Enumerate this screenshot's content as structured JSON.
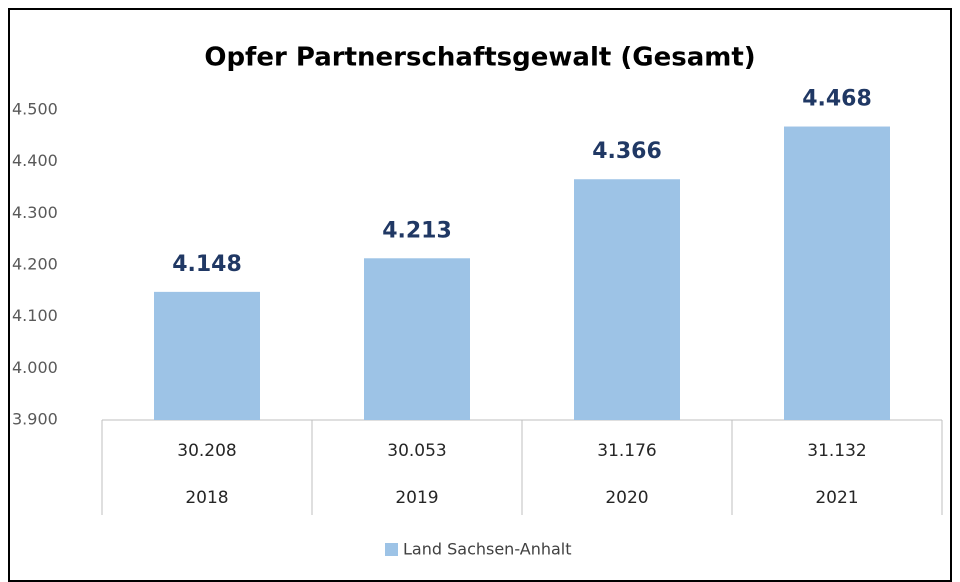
{
  "chart_data": {
    "type": "bar",
    "title": "Opfer Partnerschaftsgewalt (Gesamt)",
    "categories": [
      "2018",
      "2019",
      "2020",
      "2021"
    ],
    "table_row": [
      "30.208",
      "30.053",
      "31.176",
      "31.132"
    ],
    "series": [
      {
        "name": "Land Sachsen-Anhalt",
        "color": "#9dc3e6",
        "values": [
          4148,
          4213,
          4366,
          4468
        ],
        "value_labels": [
          "4.148",
          "4.213",
          "4.366",
          "4.468"
        ]
      }
    ],
    "ylim": [
      3900,
      4500
    ],
    "yticks": [
      {
        "value": 3900,
        "label": "3.900"
      },
      {
        "value": 4000,
        "label": "4.000"
      },
      {
        "value": 4100,
        "label": "4.100"
      },
      {
        "value": 4200,
        "label": "4.200"
      },
      {
        "value": 4300,
        "label": "4.300"
      },
      {
        "value": 4400,
        "label": "4.400"
      },
      {
        "value": 4500,
        "label": "4.500"
      }
    ],
    "grid": false,
    "legend": "bottom"
  }
}
